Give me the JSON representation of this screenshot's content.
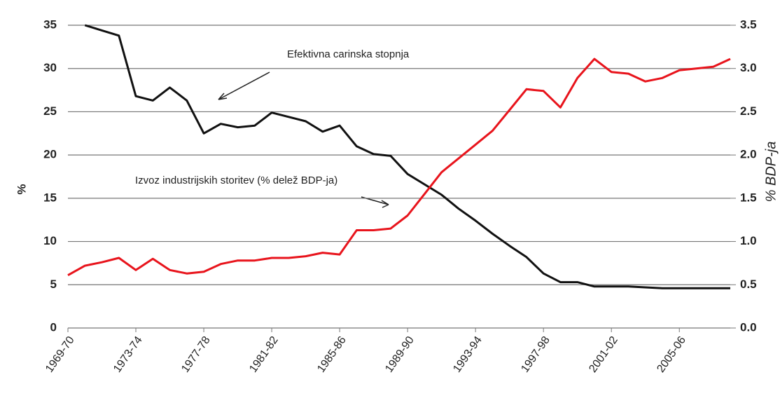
{
  "chart_data": {
    "type": "line",
    "ylabel": "%",
    "y2label": "% BDP-ja",
    "annotations": [
      "Efektivna carinska stopnja",
      "Izvoz industrijskih storitev (% delež BDP-ja)"
    ],
    "categories": [
      "1969-70",
      null,
      null,
      null,
      "1973-74",
      null,
      null,
      null,
      "1977-78",
      null,
      null,
      null,
      "1981-82",
      null,
      null,
      null,
      "1985-86",
      null,
      null,
      null,
      "1989-90",
      null,
      null,
      null,
      "1993-94",
      null,
      null,
      null,
      "1997-98",
      null,
      null,
      null,
      "2001-02",
      null,
      null,
      null,
      "2005-06",
      null,
      null,
      null
    ],
    "ylim": [
      0,
      35
    ],
    "yticks": [
      0,
      5,
      10,
      15,
      20,
      25,
      30,
      35
    ],
    "y2lim": [
      0,
      3.5
    ],
    "y2ticks": [
      {
        "value": 0,
        "label": "0.0"
      },
      0.5,
      {
        "value": 1,
        "label": "1.0"
      },
      1.5,
      {
        "value": 2,
        "label": "2.0"
      },
      2.5,
      {
        "value": 3,
        "label": "3.0"
      },
      3.5
    ],
    "grid": true,
    "series": [
      {
        "name": "Efektivna carinska stopnja",
        "color": "#111111",
        "axis": "y",
        "values": [
          null,
          35,
          34.4,
          33.8,
          26.8,
          26.3,
          27.8,
          26.3,
          22.5,
          23.6,
          23.2,
          23.4,
          24.9,
          24.4,
          23.9,
          22.7,
          23.4,
          21.0,
          20.1,
          19.9,
          17.8,
          16.6,
          15.4,
          13.8,
          12.4,
          10.9,
          9.5,
          8.2,
          6.3,
          5.3,
          5.3,
          4.8,
          4.8,
          4.8,
          4.7,
          4.6,
          4.6,
          4.6,
          4.6,
          4.6
        ]
      },
      {
        "name": "Izvoz industrijskih storitev (% delež BDP-ja)",
        "color": "#e8141c",
        "axis": "y2",
        "values": [
          0.61,
          0.72,
          0.76,
          0.81,
          0.67,
          0.8,
          0.67,
          0.63,
          0.65,
          0.74,
          0.78,
          0.78,
          0.81,
          0.81,
          0.83,
          0.87,
          0.85,
          1.13,
          1.13,
          1.15,
          1.3,
          1.55,
          1.8,
          1.96,
          2.12,
          2.28,
          2.52,
          2.76,
          2.74,
          2.55,
          2.89,
          3.11,
          2.96,
          2.94,
          2.85,
          2.89,
          2.98,
          3.0,
          3.02,
          3.11
        ]
      }
    ]
  }
}
